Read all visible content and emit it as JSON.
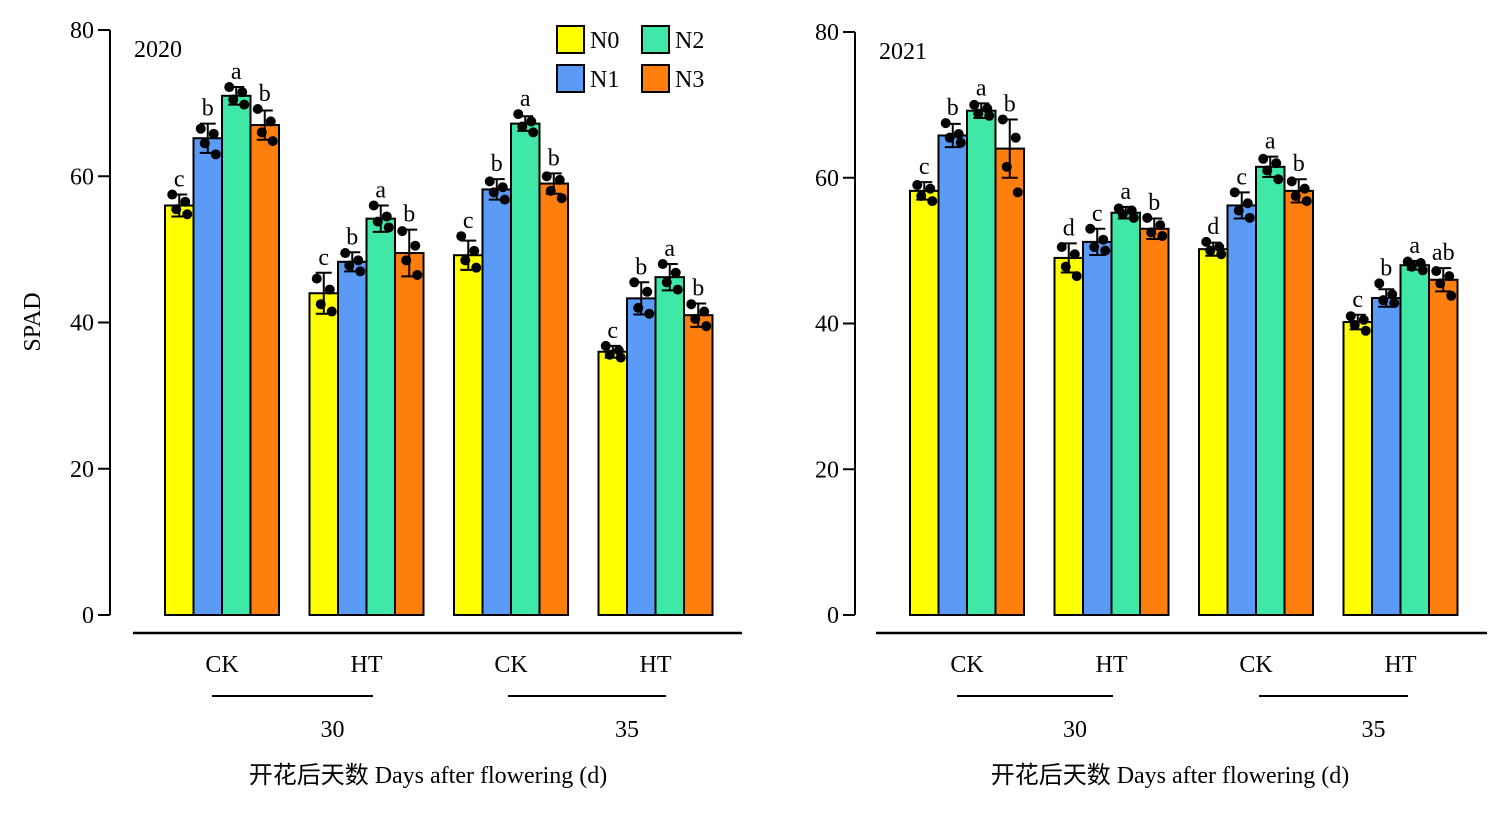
{
  "chart_data": {
    "type": "bar",
    "ylabel": "SPAD",
    "xlabel": "开花后天数 Days after flowering (d)",
    "ylim": [
      0,
      80
    ],
    "yticks": [
      0,
      20,
      40,
      60,
      80
    ],
    "legend": {
      "placement": "top-right of left panel",
      "entries": [
        {
          "name": "N0",
          "color": "#FFFF00"
        },
        {
          "name": "N1",
          "color": "#5B9BF7"
        },
        {
          "name": "N2",
          "color": "#40E8A8"
        },
        {
          "name": "N3",
          "color": "#FF7F0E"
        }
      ]
    },
    "categories": [
      "CK",
      "HT",
      "CK",
      "HT"
    ],
    "day_groups": [
      {
        "label": "30",
        "covers": [
          0,
          1
        ]
      },
      {
        "label": "35",
        "covers": [
          2,
          3
        ]
      }
    ],
    "panels": [
      {
        "label": "2020",
        "groups": [
          {
            "category": "CK",
            "day": "30",
            "bars": [
              {
                "series": "N0",
                "value": 56,
                "err": 1.5,
                "letter": "c",
                "points": [
                  57.5,
                  56.5,
                  55.5,
                  54.8
                ]
              },
              {
                "series": "N1",
                "value": 65.2,
                "err": 2.0,
                "letter": "b",
                "points": [
                  66.5,
                  65.8,
                  64.5,
                  63.0
                ]
              },
              {
                "series": "N2",
                "value": 71,
                "err": 1.2,
                "letter": "a",
                "points": [
                  72.2,
                  71.5,
                  70.5,
                  69.8
                ]
              },
              {
                "series": "N3",
                "value": 67,
                "err": 2.0,
                "letter": "b",
                "points": [
                  69.2,
                  67.5,
                  66.0,
                  64.8
                ]
              }
            ]
          },
          {
            "category": "HT",
            "day": "30",
            "bars": [
              {
                "series": "N0",
                "value": 44,
                "err": 2.8,
                "letter": "c",
                "points": [
                  46.0,
                  44.5,
                  42.5,
                  41.5
                ]
              },
              {
                "series": "N1",
                "value": 48.3,
                "err": 1.3,
                "letter": "b",
                "points": [
                  49.5,
                  48.5,
                  47.8,
                  47.0
                ]
              },
              {
                "series": "N2",
                "value": 54.2,
                "err": 1.8,
                "letter": "a",
                "points": [
                  56.0,
                  54.5,
                  53.8,
                  53.0
                ]
              },
              {
                "series": "N3",
                "value": 49.5,
                "err": 3.2,
                "letter": "b",
                "points": [
                  52.5,
                  50.5,
                  48.5,
                  46.5
                ]
              }
            ]
          },
          {
            "category": "CK",
            "day": "35",
            "bars": [
              {
                "series": "N0",
                "value": 49.2,
                "err": 2.0,
                "letter": "c",
                "points": [
                  51.8,
                  49.8,
                  48.5,
                  47.5
                ]
              },
              {
                "series": "N1",
                "value": 58.2,
                "err": 1.4,
                "letter": "b",
                "points": [
                  59.3,
                  58.5,
                  57.8,
                  56.8
                ]
              },
              {
                "series": "N2",
                "value": 67.2,
                "err": 1.0,
                "letter": "a",
                "points": [
                  68.5,
                  67.5,
                  66.8,
                  66.0
                ]
              },
              {
                "series": "N3",
                "value": 59,
                "err": 1.4,
                "letter": "b",
                "points": [
                  60.0,
                  59.5,
                  58.0,
                  57.0
                ]
              }
            ]
          },
          {
            "category": "HT",
            "day": "35",
            "bars": [
              {
                "series": "N0",
                "value": 36,
                "err": 0.8,
                "letter": "c",
                "points": [
                  36.8,
                  36.2,
                  35.6,
                  35.2
                ]
              },
              {
                "series": "N1",
                "value": 43.3,
                "err": 2.2,
                "letter": "b",
                "points": [
                  45.5,
                  44.2,
                  42.0,
                  41.2
                ]
              },
              {
                "series": "N2",
                "value": 46.2,
                "err": 1.8,
                "letter": "a",
                "points": [
                  48.0,
                  46.8,
                  45.5,
                  44.5
                ]
              },
              {
                "series": "N3",
                "value": 41,
                "err": 1.6,
                "letter": "b",
                "points": [
                  42.5,
                  41.5,
                  40.5,
                  39.5
                ]
              }
            ]
          }
        ]
      },
      {
        "label": "2021",
        "groups": [
          {
            "category": "CK",
            "day": "30",
            "bars": [
              {
                "series": "N0",
                "value": 58.2,
                "err": 1.2,
                "letter": "c",
                "points": [
                  59.0,
                  58.5,
                  57.5,
                  56.8
                ]
              },
              {
                "series": "N1",
                "value": 65.8,
                "err": 1.6,
                "letter": "b",
                "points": [
                  67.5,
                  66.0,
                  65.5,
                  64.8
                ]
              },
              {
                "series": "N2",
                "value": 69.2,
                "err": 1.0,
                "letter": "a",
                "points": [
                  70.0,
                  69.5,
                  68.8,
                  68.5
                ]
              },
              {
                "series": "N3",
                "value": 64,
                "err": 4.0,
                "letter": "b",
                "points": [
                  68.0,
                  65.5,
                  61.5,
                  58.0
                ]
              }
            ]
          },
          {
            "category": "HT",
            "day": "30",
            "bars": [
              {
                "series": "N0",
                "value": 49,
                "err": 2.0,
                "letter": "d",
                "points": [
                  50.5,
                  49.5,
                  47.8,
                  46.5
                ]
              },
              {
                "series": "N1",
                "value": 51.2,
                "err": 1.8,
                "letter": "c",
                "points": [
                  53.0,
                  51.5,
                  50.5,
                  50.0
                ]
              },
              {
                "series": "N2",
                "value": 55.2,
                "err": 0.8,
                "letter": "a",
                "points": [
                  55.8,
                  55.5,
                  55.0,
                  54.5
                ]
              },
              {
                "series": "N3",
                "value": 53,
                "err": 1.4,
                "letter": "b",
                "points": [
                  54.5,
                  53.5,
                  52.5,
                  52.0
                ]
              }
            ]
          },
          {
            "category": "CK",
            "day": "35",
            "bars": [
              {
                "series": "N0",
                "value": 50.2,
                "err": 0.9,
                "letter": "d",
                "points": [
                  51.2,
                  50.5,
                  50.0,
                  49.5
                ]
              },
              {
                "series": "N1",
                "value": 56.2,
                "err": 1.8,
                "letter": "c",
                "points": [
                  58.0,
                  56.5,
                  55.5,
                  54.5
                ]
              },
              {
                "series": "N2",
                "value": 61.5,
                "err": 1.4,
                "letter": "a",
                "points": [
                  62.6,
                  62.0,
                  61.0,
                  59.8
                ]
              },
              {
                "series": "N3",
                "value": 58.2,
                "err": 1.6,
                "letter": "b",
                "points": [
                  59.5,
                  58.5,
                  57.5,
                  56.8
                ]
              }
            ]
          },
          {
            "category": "HT",
            "day": "35",
            "bars": [
              {
                "series": "N0",
                "value": 40.2,
                "err": 1.0,
                "letter": "c",
                "points": [
                  41.0,
                  40.5,
                  39.8,
                  39.0
                ]
              },
              {
                "series": "N1",
                "value": 43.5,
                "err": 1.2,
                "letter": "b",
                "points": [
                  45.5,
                  44.0,
                  43.2,
                  42.8
                ]
              },
              {
                "series": "N2",
                "value": 48,
                "err": 0.6,
                "letter": "a",
                "points": [
                  48.5,
                  48.3,
                  47.8,
                  47.3
                ]
              },
              {
                "series": "N3",
                "value": 46,
                "err": 1.6,
                "letter": "ab",
                "points": [
                  47.2,
                  46.5,
                  45.5,
                  43.8
                ]
              }
            ]
          }
        ]
      }
    ]
  }
}
